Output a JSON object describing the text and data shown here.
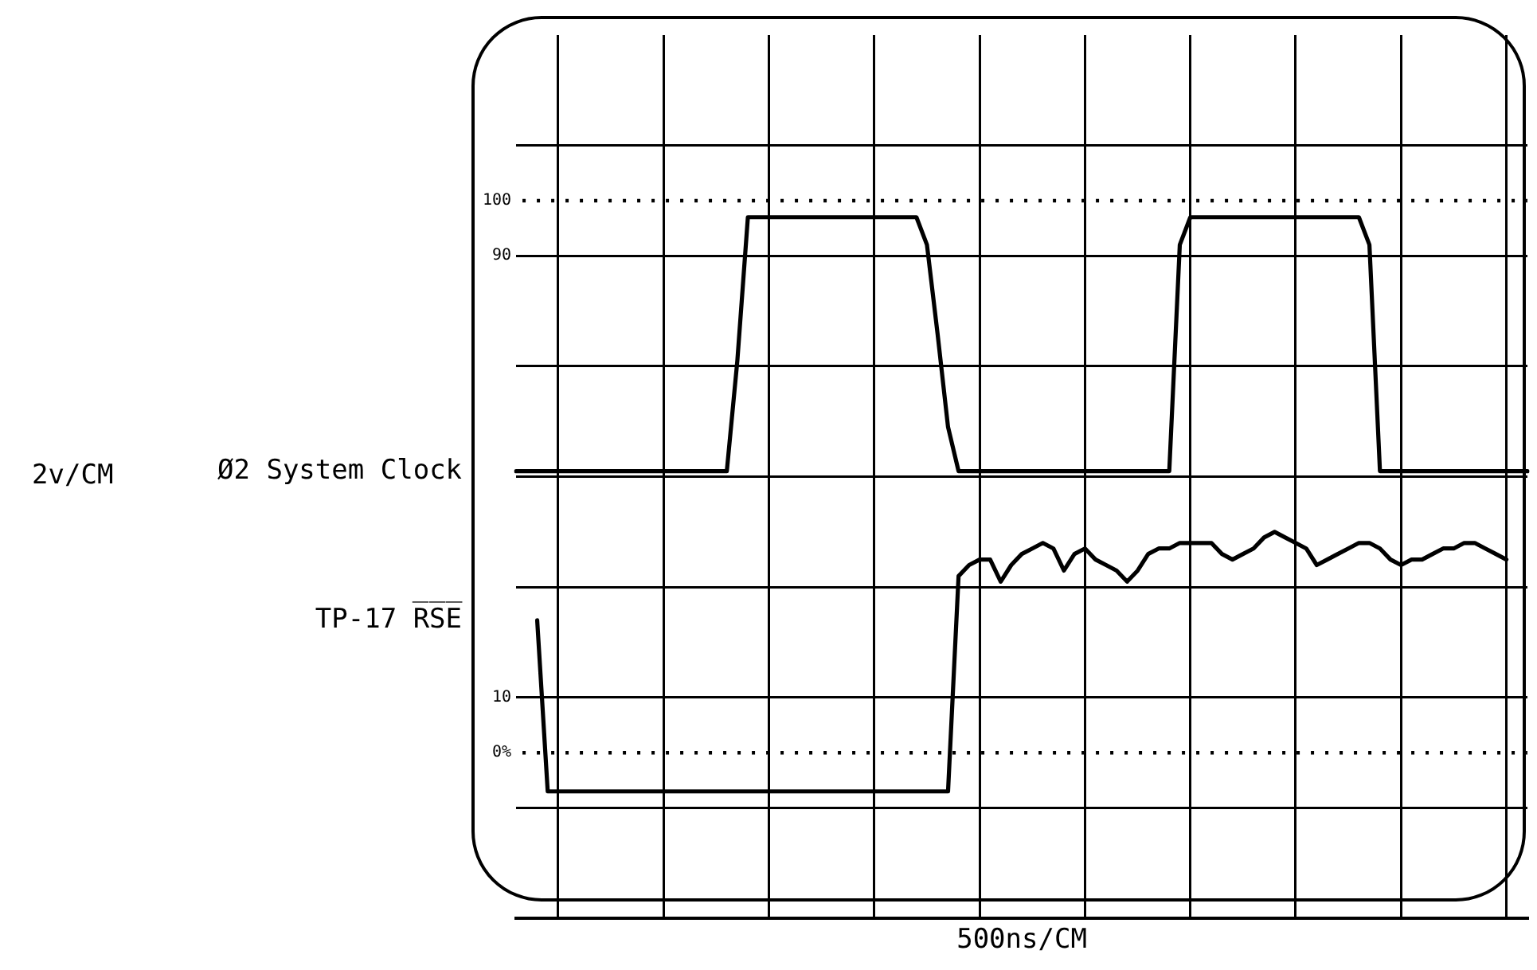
{
  "chart_data": {
    "type": "line",
    "xlabel": "500ns/CM",
    "annotations": [
      "2v/CM"
    ],
    "categories": [
      null,
      null,
      null,
      null,
      null,
      null,
      null,
      null,
      null,
      null,
      null,
      null,
      null,
      null,
      null,
      null,
      null,
      null,
      null,
      null,
      null,
      null,
      null,
      null,
      null,
      null,
      null,
      null,
      null,
      null,
      null,
      null,
      null,
      null,
      null,
      null,
      null,
      null,
      null,
      null,
      null,
      null,
      null,
      null,
      null,
      null,
      null,
      null,
      null,
      null,
      null,
      null,
      null,
      null,
      null,
      null,
      null,
      null,
      null,
      null,
      null,
      null,
      null,
      null,
      null,
      null,
      null,
      null,
      null,
      null,
      null,
      null,
      null,
      null,
      null,
      null,
      null,
      null,
      null,
      null,
      null,
      null,
      null,
      null,
      null,
      null,
      null,
      null,
      null,
      null,
      null,
      null,
      null,
      null,
      null,
      null,
      null
    ],
    "ylim": [
      -30,
      130
    ],
    "yticks": [
      {
        "value": -10,
        "label": null
      },
      {
        "value": 10,
        "label": "10"
      },
      {
        "value": 30,
        "label": null
      },
      {
        "value": 50,
        "label": null
      },
      {
        "value": 70,
        "label": null
      },
      {
        "value": 90,
        "label": "90"
      },
      {
        "value": 110,
        "label": null
      }
    ],
    "tick_labels": "y",
    "grid": true,
    "marker": "none",
    "line_style": "solid",
    "legend": false,
    "ref_lines": [
      {
        "axis": "y",
        "value": 100,
        "label": "100",
        "line_style": "dotted"
      },
      {
        "axis": "y",
        "value": 0,
        "label": "0%",
        "line_style": "dotted"
      }
    ],
    "series": [
      {
        "name": "Ø2 System Clock",
        "color": "#000000",
        "values": [
          51,
          51,
          51,
          51,
          51,
          51,
          51,
          51,
          51,
          51,
          51,
          51,
          51,
          51,
          51,
          51,
          51,
          51,
          51,
          51,
          51,
          71,
          97,
          97,
          97,
          97,
          97,
          97,
          97,
          97,
          97,
          97,
          97,
          97,
          97,
          97,
          97,
          97,
          97,
          92,
          76,
          59,
          51,
          51,
          51,
          51,
          51,
          51,
          51,
          51,
          51,
          51,
          51,
          51,
          51,
          51,
          51,
          51,
          51,
          51,
          51,
          51,
          51,
          92,
          97,
          97,
          97,
          97,
          97,
          97,
          97,
          97,
          97,
          97,
          97,
          97,
          97,
          97,
          97,
          97,
          97,
          92,
          51,
          51,
          51,
          51,
          51,
          51,
          51,
          51,
          51,
          51,
          51,
          51,
          51,
          51,
          51
        ]
      },
      {
        "name": "TP-17 R̅S̅E̅",
        "color": "#000000",
        "values": [
          null,
          null,
          24,
          -7,
          -7,
          -7,
          -7,
          -7,
          -7,
          -7,
          -7,
          -7,
          -7,
          -7,
          -7,
          -7,
          -7,
          -7,
          -7,
          -7,
          -7,
          -7,
          -7,
          -7,
          -7,
          -7,
          -7,
          -7,
          -7,
          -7,
          -7,
          -7,
          -7,
          -7,
          -7,
          -7,
          -7,
          -7,
          -7,
          -7,
          -7,
          -7,
          32,
          34,
          35,
          35,
          31,
          34,
          36,
          37,
          38,
          37,
          33,
          36,
          37,
          35,
          34,
          33,
          31,
          33,
          36,
          37,
          37,
          38,
          38,
          38,
          38,
          36,
          35,
          36,
          37,
          39,
          40,
          39,
          38,
          37,
          34,
          35,
          36,
          37,
          38,
          38,
          37,
          35,
          34,
          35,
          35,
          36,
          37,
          37,
          38,
          38,
          37,
          36,
          35,
          null,
          null
        ]
      }
    ]
  }
}
